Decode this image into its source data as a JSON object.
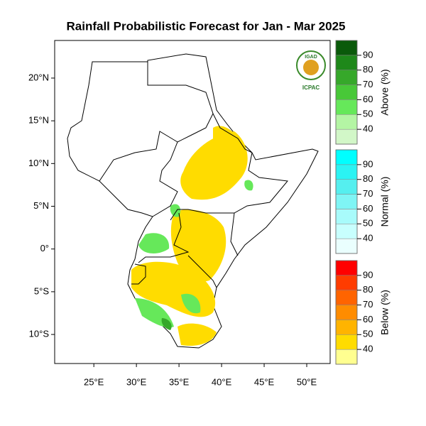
{
  "title": "Rainfall Probabilistic Forecast for Jan - Mar 2025",
  "map": {
    "xlim": [
      20.4,
      52.75
    ],
    "ylim": [
      -13.4,
      24.4
    ],
    "xticks": [
      {
        "value": 25,
        "label": "25°E"
      },
      {
        "value": 30,
        "label": "30°E"
      },
      {
        "value": 35,
        "label": "35°E"
      },
      {
        "value": 40,
        "label": "40°E"
      },
      {
        "value": 45,
        "label": "45°E"
      },
      {
        "value": 50,
        "label": "50°E"
      }
    ],
    "yticks": [
      {
        "value": 20,
        "label": "20°N"
      },
      {
        "value": 15,
        "label": "15°N"
      },
      {
        "value": 10,
        "label": "10°N"
      },
      {
        "value": 5,
        "label": "5°N"
      },
      {
        "value": 0,
        "label": "0°"
      },
      {
        "value": -5,
        "label": "5°S"
      },
      {
        "value": -10,
        "label": "10°S"
      }
    ]
  },
  "logo": {
    "name": "IGAD",
    "org": "ICPAC"
  },
  "colorbars": [
    {
      "label": "Above (%)",
      "ticks": [
        40,
        50,
        60,
        70,
        80,
        90
      ],
      "colors": [
        "#d2f7c8",
        "#b4f5a4",
        "#66e85a",
        "#48c838",
        "#36a82a",
        "#1e881a",
        "#0a5a0a"
      ]
    },
    {
      "label": "Normal (%)",
      "ticks": [
        40,
        50,
        60,
        70,
        80,
        90
      ],
      "colors": [
        "#eafffe",
        "#c8fffe",
        "#a8fbfb",
        "#7ff5f5",
        "#55efef",
        "#2bf3f3",
        "#00ffff"
      ]
    },
    {
      "label": "Below (%)",
      "ticks": [
        40,
        50,
        60,
        70,
        80,
        90
      ],
      "colors": [
        "#ffff90",
        "#ffdc00",
        "#ffb400",
        "#ff8c00",
        "#ff6400",
        "#ff3c00",
        "#ff0000"
      ]
    }
  ]
}
